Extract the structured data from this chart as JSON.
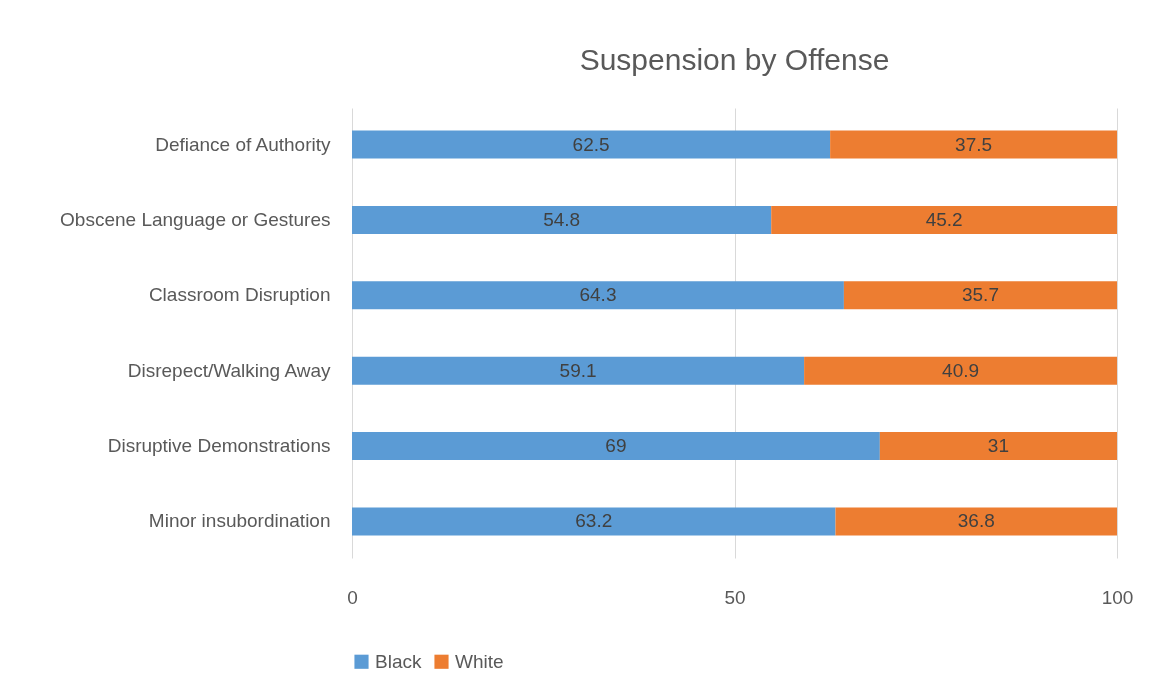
{
  "chart_data": {
    "type": "bar",
    "orientation": "horizontal",
    "stacked": true,
    "title": "Suspension by Offense",
    "categories": [
      "Defiance of Authority",
      "Obscene Language or Gestures",
      "Classroom Disruption",
      "Disrepect/Walking Away",
      "Disruptive Demonstrations",
      "Minor insubordination"
    ],
    "series": [
      {
        "name": "Black",
        "color": "#5b9bd5",
        "values": [
          62.5,
          54.8,
          64.3,
          59.1,
          69,
          63.2
        ]
      },
      {
        "name": "White",
        "color": "#ed7d31",
        "values": [
          37.5,
          45.2,
          35.7,
          40.9,
          31,
          36.8
        ]
      }
    ],
    "xlim": [
      0,
      100
    ],
    "xticks": [
      0,
      50,
      100
    ],
    "grid": "x",
    "legend": "bottom",
    "data_labels": true
  }
}
